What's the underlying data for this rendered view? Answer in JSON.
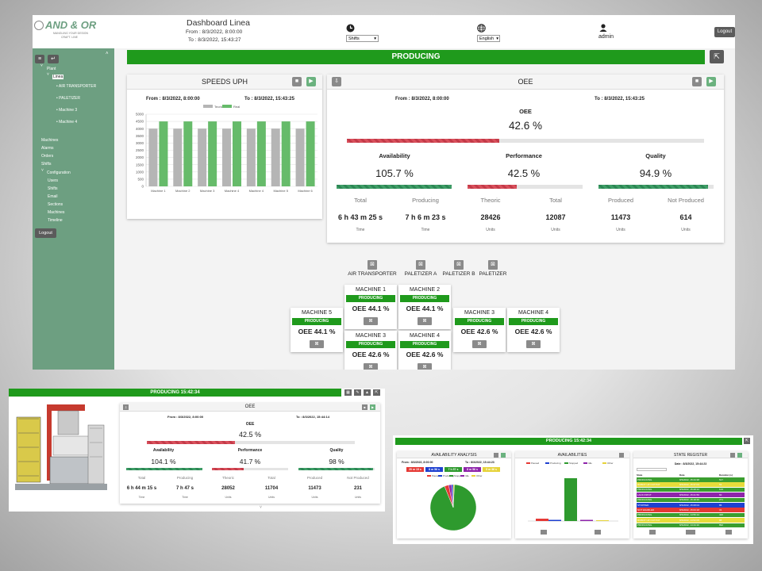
{
  "header": {
    "logo_text": "AND & OR",
    "logo_sub": "MANGLING YOUR DESIGN",
    "logo_sub2": "CRAFT. LINE",
    "title": "Dashboard Linea",
    "from": "From : 8/3/2022, 8:00:00",
    "to": "To : 8/3/2022, 15:43:27",
    "shifts_select": "Shifts",
    "language_select": "English",
    "user": "admin",
    "logout": "Logout"
  },
  "sidebar": {
    "plant": "Plant",
    "linea": "Linea",
    "tree": [
      "AIR TRANSPORTER",
      "PALETIZER",
      "Machine 3",
      "Machine 4"
    ],
    "menu": [
      "Machines",
      "Alarms",
      "Orders",
      "Shifts"
    ],
    "config_label": "Configuration",
    "config_items": [
      "Users",
      "Shifts",
      "Email",
      "Sections",
      "Machines",
      "Timeline"
    ],
    "logout": "Logout"
  },
  "status_banner": "PRODUCING",
  "speeds": {
    "title": "SPEEDS UPH",
    "from": "From : 8/3/2022, 8:00:00",
    "to": "To : 8/3/2022, 15:43:25"
  },
  "chart_data": {
    "type": "bar",
    "title": "SPEEDS UPH",
    "categories": [
      "Machine 1",
      "Machine 2",
      "Machine 3",
      "Machine 4",
      "Machine 4",
      "Machine 5",
      "Machine 6"
    ],
    "series": [
      {
        "name": "Teorica",
        "color": "#b5b5b5",
        "values": [
          4000,
          4000,
          4000,
          4000,
          4000,
          4000,
          4000
        ]
      },
      {
        "name": "Real",
        "color": "#66bb6a",
        "values": [
          4500,
          4500,
          4500,
          4500,
          4500,
          4500,
          4500
        ]
      }
    ],
    "ylim": [
      0,
      5000
    ],
    "yticks": [
      "0",
      "500",
      "1000",
      "1500",
      "2000",
      "2500",
      "3000",
      "3500",
      "4000",
      "4500",
      "5000"
    ],
    "grid": true,
    "legend": "top"
  },
  "oee": {
    "title": "OEE",
    "from": "From : 8/3/2022, 8:00:00",
    "to": "To : 8/3/2022, 15:43:25",
    "label": "OEE",
    "value": "42.6 %",
    "fraction": 0.426,
    "availability": {
      "label": "Availability",
      "value": "105.7 %",
      "fraction": 1.0
    },
    "performance": {
      "label": "Performance",
      "value": "42.5 %",
      "fraction": 0.425
    },
    "quality": {
      "label": "Quality",
      "value": "94.9 %",
      "fraction": 0.949
    },
    "stats": [
      {
        "label": "Total",
        "value": "6 h 43 m 25 s",
        "unit": "Time"
      },
      {
        "label": "Producing",
        "value": "7 h 6 m 23 s",
        "unit": "Time"
      },
      {
        "label": "Theoric",
        "value": "28426",
        "unit": "Units"
      },
      {
        "label": "Total",
        "value": "12087",
        "unit": "Units"
      },
      {
        "label": "Produced",
        "value": "11473",
        "unit": "Units"
      },
      {
        "label": "Not Produced",
        "value": "614",
        "unit": "Units"
      }
    ]
  },
  "stations": [
    "AIR TRANSPORTER",
    "PALETIZER A",
    "PALETIZER B",
    "PALETIZER"
  ],
  "machines": [
    {
      "name": "MACHINE 1",
      "state": "PRODUCING",
      "oee": "OEE 44.1 %"
    },
    {
      "name": "MACHINE 2",
      "state": "PRODUCING",
      "oee": "OEE 44.1 %"
    },
    {
      "name": "MACHINE 5",
      "state": "PRODUCING",
      "oee": "OEE 44.1 %"
    },
    {
      "name": "MACHINE 3",
      "state": "PRODUCING",
      "oee": "OEE 42.6 %"
    },
    {
      "name": "MACHINE 4",
      "state": "PRODUCING",
      "oee": "OEE 42.6 %"
    },
    {
      "name": "MACHINE 3",
      "state": "PRODUCING",
      "oee": "OEE 42.6 %"
    },
    {
      "name": "MACHINE 4",
      "state": "PRODUCING",
      "oee": "OEE 42.6 %"
    }
  ],
  "machine_view": {
    "banner": "PRODUCING 15:42:34",
    "oee_title": "OEE",
    "from": "From : 8/3/2022, 8:00:00",
    "to": "To : 8/3/2022, 15:44:14",
    "label": "OEE",
    "value": "42.5 %",
    "fraction": 0.425,
    "availability": {
      "label": "Availability",
      "value": "104.1 %",
      "fraction": 1.0
    },
    "performance": {
      "label": "Performance",
      "value": "41.7 %",
      "fraction": 0.417
    },
    "quality": {
      "label": "Quality",
      "value": "98 %",
      "fraction": 0.98
    },
    "stats": [
      {
        "label": "Total",
        "value": "6 h 44 m 15 s",
        "unit": "Time"
      },
      {
        "label": "Producing",
        "value": "7 h 47 s",
        "unit": "Time"
      },
      {
        "label": "Theoric",
        "value": "28052",
        "unit": "Units"
      },
      {
        "label": "Total",
        "value": "11704",
        "unit": "Units"
      },
      {
        "label": "Produced",
        "value": "11473",
        "unit": "Units"
      },
      {
        "label": "Not Produced",
        "value": "231",
        "unit": "Units"
      }
    ]
  },
  "analysis_view": {
    "banner": "PRODUCING 15:42:34",
    "availability_analysis": "AVAILABILITY ANALYSIS",
    "availabilities": "AVAILABILITIES",
    "state_register": "STATE REGISTER",
    "from": "From : 8/3/2022, 8:00:00",
    "to": "To : 8/3/2022, 15:44:23",
    "date": "Date : 8/3/2022, 15:44:23",
    "chips": [
      {
        "text": "20 m 15 s",
        "color": "#e53935"
      },
      {
        "text": "8 m 56 s",
        "color": "#1e40d0"
      },
      {
        "text": "7 h 57 s",
        "color": "#2e9a2e"
      },
      {
        "text": "8 m 56 s",
        "color": "#8e24aa"
      },
      {
        "text": "5 m 36 s",
        "color": "#e6d33a"
      }
    ],
    "legend": [
      "Paused",
      "Producing",
      "Stopped",
      "Idle",
      "Other"
    ],
    "register_cols": [
      "State",
      "Date",
      "Duration (s)"
    ],
    "register_rows": [
      {
        "state": "PRODUCING",
        "date": "8/3/2022, 15:44:38",
        "dur": "517",
        "color": "#3a9e2f"
      },
      {
        "state": "ROBOT UP OUTPUT",
        "date": "8/3/2022, 15:37:04",
        "dur": "53",
        "color": "#e7dc3b"
      },
      {
        "state": "PRODUCING",
        "date": "8/3/2022, 15:28:12",
        "dur": "124",
        "color": "#3a9e2f"
      },
      {
        "state": "LACK INPUT",
        "date": "8/3/2022, 15:21:50",
        "dur": "60",
        "color": "#8e24aa"
      },
      {
        "state": "PRODUCING",
        "date": "8/3/2022, 15:18:36",
        "dur": "271",
        "color": "#3a9e2f"
      },
      {
        "state": "STOPPED",
        "date": "8/3/2022, 15:08:04",
        "dur": "86",
        "color": "#1e40d0"
      },
      {
        "state": "NOT ENABLED",
        "date": "8/3/2022, 15:03:18",
        "dur": "31",
        "color": "#e53935"
      },
      {
        "state": "PRODUCING",
        "date": "8/3/2022, 14:56:14",
        "dur": "426",
        "color": "#3a9e2f"
      },
      {
        "state": "ROBOT UP OUTPUT",
        "date": "8/3/2022, 14:52:05",
        "dur": "88",
        "color": "#e7dc3b"
      },
      {
        "state": "PRODUCING",
        "date": "8/3/2022, 14:44:10",
        "dur": "892",
        "color": "#3a9e2f"
      }
    ]
  },
  "colors": {
    "green": "#1f9a1c",
    "sidebar": "#6d9f81",
    "red": "#d9505c"
  }
}
